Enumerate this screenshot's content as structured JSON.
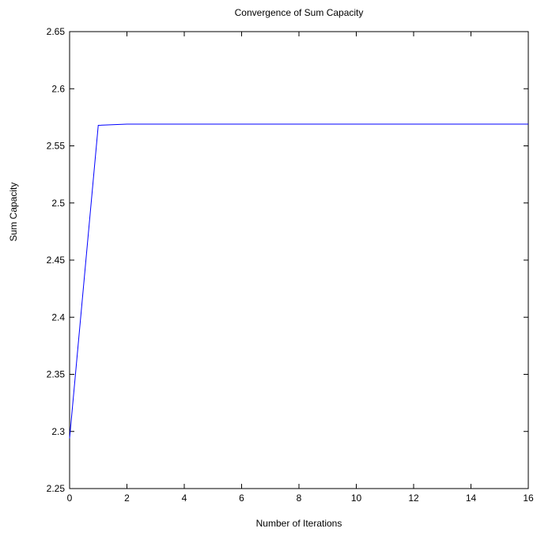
{
  "chart_data": {
    "type": "line",
    "title": "Convergence of Sum Capacity",
    "xlabel": "Number of Iterations",
    "ylabel": "Sum Capacity",
    "xlim": [
      0,
      16
    ],
    "ylim": [
      2.25,
      2.65
    ],
    "xticks": [
      0,
      2,
      4,
      6,
      8,
      10,
      12,
      14,
      16
    ],
    "yticks": [
      2.25,
      2.3,
      2.35,
      2.4,
      2.45,
      2.5,
      2.55,
      2.6,
      2.65
    ],
    "xtick_labels": [
      "0",
      "2",
      "4",
      "6",
      "8",
      "10",
      "12",
      "14",
      "16"
    ],
    "ytick_labels": [
      "2.25",
      "2.3",
      "2.35",
      "2.4",
      "2.45",
      "2.5",
      "2.55",
      "2.6",
      "2.65"
    ],
    "grid": false,
    "series": [
      {
        "color": "#0000ff",
        "x": [
          0,
          1,
          2,
          3,
          4,
          5,
          6,
          7,
          8,
          9,
          10,
          11,
          12,
          13,
          14,
          15,
          16
        ],
        "y": [
          2.294,
          2.568,
          2.569,
          2.569,
          2.569,
          2.569,
          2.569,
          2.569,
          2.569,
          2.569,
          2.569,
          2.569,
          2.569,
          2.569,
          2.569,
          2.569,
          2.569
        ]
      }
    ]
  }
}
